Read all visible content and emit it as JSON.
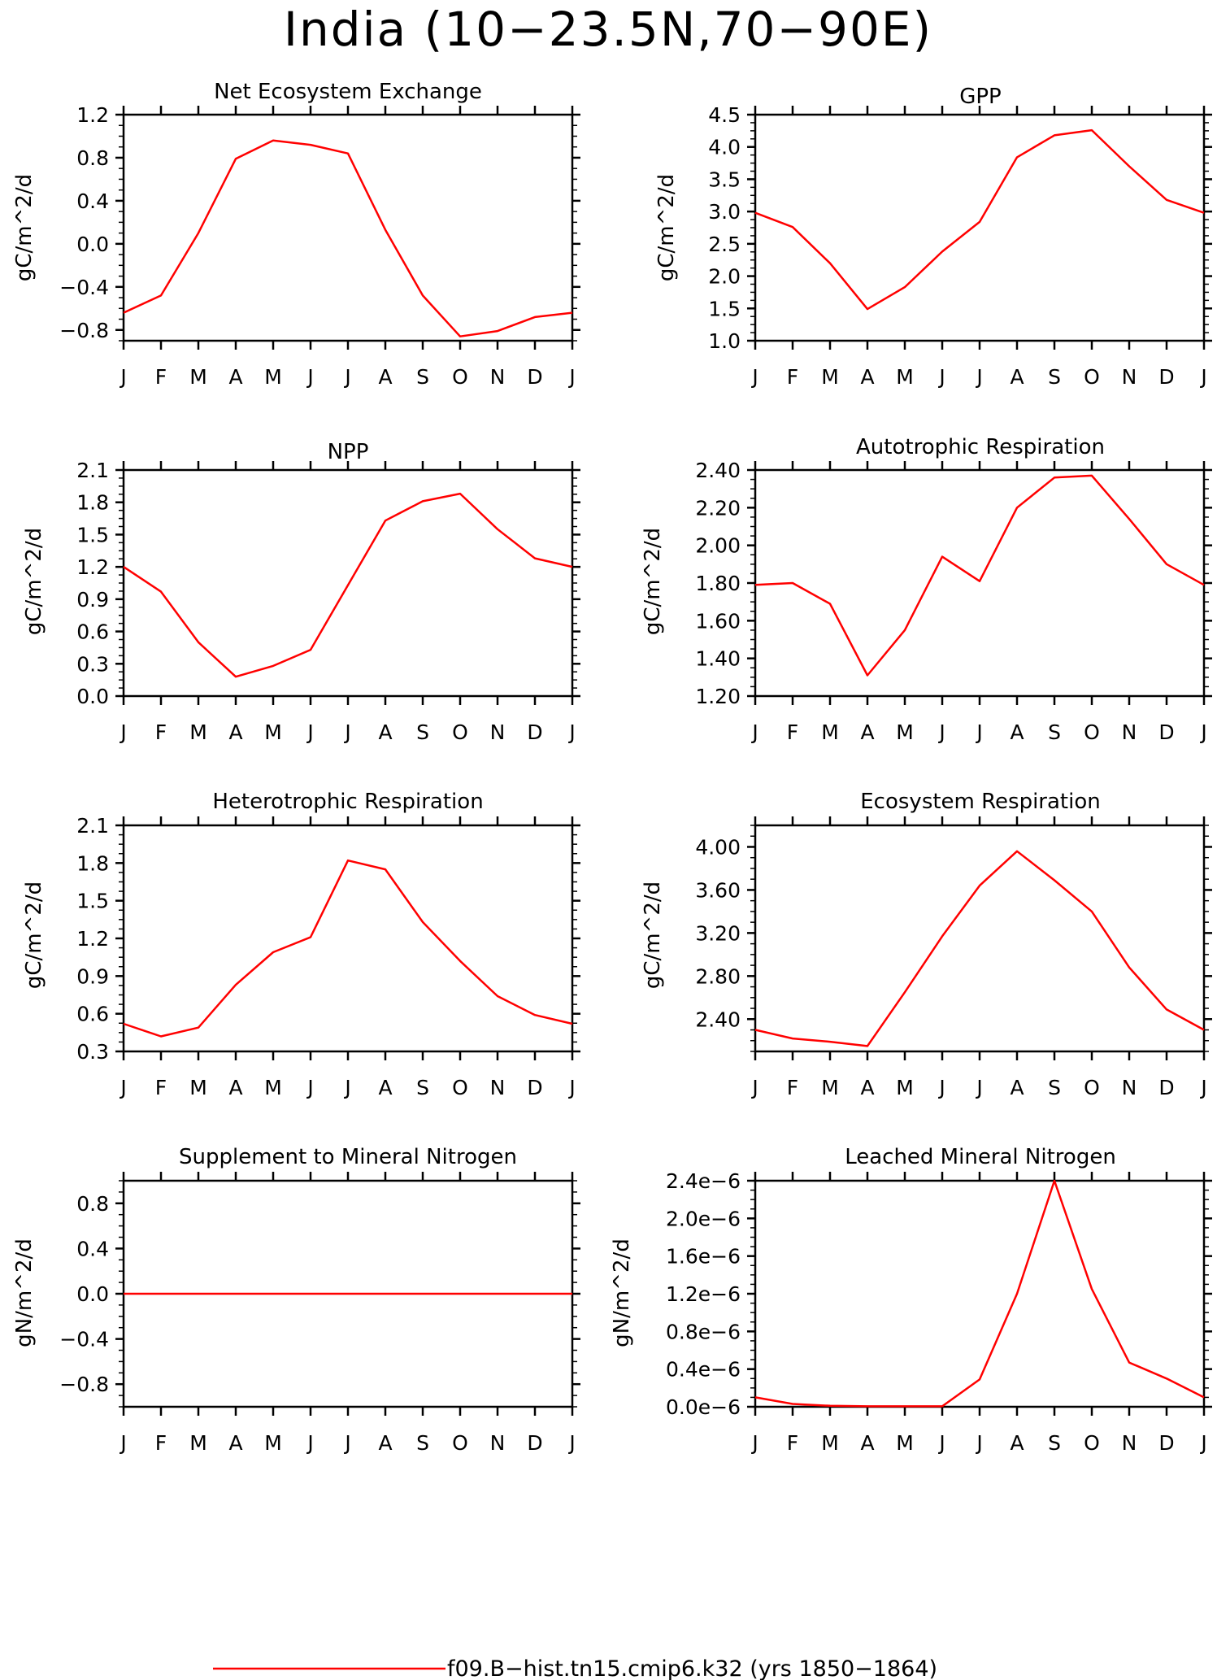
{
  "title": "India (10−23.5N,70−90E)",
  "month_labels": [
    "J",
    "F",
    "M",
    "A",
    "M",
    "J",
    "J",
    "A",
    "S",
    "O",
    "N",
    "D",
    "J"
  ],
  "line_color": "#ff0000",
  "legend": {
    "label": "f09.B−hist.tn15.cmip6.k32 (yrs 1850−1864)"
  },
  "chart_data": [
    {
      "type": "line",
      "title": "Net Ecosystem Exchange",
      "ylabel": "gC/m^2/d",
      "categories": [
        "J",
        "F",
        "M",
        "A",
        "M",
        "J",
        "J",
        "A",
        "S",
        "O",
        "N",
        "D",
        "J"
      ],
      "values": [
        -0.64,
        -0.48,
        0.1,
        0.79,
        0.96,
        0.92,
        0.84,
        0.13,
        -0.48,
        -0.86,
        -0.81,
        -0.68,
        -0.64
      ],
      "ylim": [
        -0.9,
        1.2
      ],
      "yticks": [
        -0.8,
        -0.4,
        0.0,
        0.4,
        0.8,
        1.2
      ],
      "ytick_labels": [
        "−0.8",
        "−0.4",
        "0.0",
        "0.4",
        "0.8",
        "1.2"
      ]
    },
    {
      "type": "line",
      "title": "GPP",
      "ylabel": "gC/m^2/d",
      "categories": [
        "J",
        "F",
        "M",
        "A",
        "M",
        "J",
        "J",
        "A",
        "S",
        "O",
        "N",
        "D",
        "J"
      ],
      "values": [
        2.98,
        2.76,
        2.2,
        1.49,
        1.83,
        2.38,
        2.84,
        3.84,
        4.18,
        4.26,
        3.7,
        3.18,
        2.98
      ],
      "ylim": [
        1.0,
        4.5
      ],
      "yticks": [
        1.0,
        1.5,
        2.0,
        2.5,
        3.0,
        3.5,
        4.0,
        4.5
      ],
      "ytick_labels": [
        "1.0",
        "1.5",
        "2.0",
        "2.5",
        "3.0",
        "3.5",
        "4.0",
        "4.5"
      ]
    },
    {
      "type": "line",
      "title": "NPP",
      "ylabel": "gC/m^2/d",
      "categories": [
        "J",
        "F",
        "M",
        "A",
        "M",
        "J",
        "J",
        "A",
        "S",
        "O",
        "N",
        "D",
        "J"
      ],
      "values": [
        1.2,
        0.97,
        0.5,
        0.18,
        0.28,
        0.43,
        1.03,
        1.63,
        1.81,
        1.88,
        1.55,
        1.28,
        1.2
      ],
      "ylim": [
        0.0,
        2.1
      ],
      "yticks": [
        0.0,
        0.3,
        0.6,
        0.9,
        1.2,
        1.5,
        1.8,
        2.1
      ],
      "ytick_labels": [
        "0.0",
        "0.3",
        "0.6",
        "0.9",
        "1.2",
        "1.5",
        "1.8",
        "2.1"
      ]
    },
    {
      "type": "line",
      "title": "Autotrophic Respiration",
      "ylabel": "gC/m^2/d",
      "categories": [
        "J",
        "F",
        "M",
        "A",
        "M",
        "J",
        "J",
        "A",
        "S",
        "O",
        "N",
        "D",
        "J"
      ],
      "values": [
        1.79,
        1.8,
        1.69,
        1.31,
        1.55,
        1.94,
        1.81,
        2.2,
        2.36,
        2.37,
        2.14,
        1.9,
        1.79
      ],
      "ylim": [
        1.2,
        2.4
      ],
      "yticks": [
        1.2,
        1.4,
        1.6,
        1.8,
        2.0,
        2.2,
        2.4
      ],
      "ytick_labels": [
        "1.20",
        "1.40",
        "1.60",
        "1.80",
        "2.00",
        "2.20",
        "2.40"
      ]
    },
    {
      "type": "line",
      "title": "Heterotrophic Respiration",
      "ylabel": "gC/m^2/d",
      "categories": [
        "J",
        "F",
        "M",
        "A",
        "M",
        "J",
        "J",
        "A",
        "S",
        "O",
        "N",
        "D",
        "J"
      ],
      "values": [
        0.52,
        0.42,
        0.49,
        0.83,
        1.09,
        1.21,
        1.82,
        1.75,
        1.33,
        1.02,
        0.74,
        0.59,
        0.52
      ],
      "ylim": [
        0.3,
        2.1
      ],
      "yticks": [
        0.3,
        0.6,
        0.9,
        1.2,
        1.5,
        1.8,
        2.1
      ],
      "ytick_labels": [
        "0.3",
        "0.6",
        "0.9",
        "1.2",
        "1.5",
        "1.8",
        "2.1"
      ]
    },
    {
      "type": "line",
      "title": "Ecosystem Respiration",
      "ylabel": "gC/m^2/d",
      "categories": [
        "J",
        "F",
        "M",
        "A",
        "M",
        "J",
        "J",
        "A",
        "S",
        "O",
        "N",
        "D",
        "J"
      ],
      "values": [
        2.3,
        2.22,
        2.19,
        2.15,
        2.65,
        3.17,
        3.64,
        3.96,
        3.69,
        3.4,
        2.88,
        2.49,
        2.3
      ],
      "ylim": [
        2.1,
        4.2
      ],
      "yticks": [
        2.4,
        2.8,
        3.2,
        3.6,
        4.0
      ],
      "ytick_labels": [
        "2.40",
        "2.80",
        "3.20",
        "3.60",
        "4.00"
      ]
    },
    {
      "type": "line",
      "title": "Supplement to Mineral Nitrogen",
      "ylabel": "gN/m^2/d",
      "categories": [
        "J",
        "F",
        "M",
        "A",
        "M",
        "J",
        "J",
        "A",
        "S",
        "O",
        "N",
        "D",
        "J"
      ],
      "values": [
        0,
        0,
        0,
        0,
        0,
        0,
        0,
        0,
        0,
        0,
        0,
        0,
        0
      ],
      "ylim": [
        -1.0,
        1.0
      ],
      "yticks": [
        -0.8,
        -0.4,
        0.0,
        0.4,
        0.8
      ],
      "ytick_labels": [
        "−0.8",
        "−0.4",
        "0.0",
        "0.4",
        "0.8"
      ]
    },
    {
      "type": "line",
      "title": "Leached Mineral Nitrogen",
      "ylabel": "gN/m^2/d",
      "categories": [
        "J",
        "F",
        "M",
        "A",
        "M",
        "J",
        "J",
        "A",
        "S",
        "O",
        "N",
        "D",
        "J"
      ],
      "values": [
        1e-07,
        3e-08,
        1e-08,
        5e-09,
        5e-09,
        5e-09,
        2.9e-07,
        1.2e-06,
        2.4e-06,
        1.25e-06,
        4.7e-07,
        3e-07,
        1e-07
      ],
      "ylim": [
        0.0,
        2.4e-06
      ],
      "yticks": [
        0.0,
        4e-07,
        8e-07,
        1.2e-06,
        1.6e-06,
        2e-06,
        2.4e-06
      ],
      "ytick_labels": [
        "0.0e−6",
        "0.4e−6",
        "0.8e−6",
        "1.2e−6",
        "1.6e−6",
        "2.0e−6",
        "2.4e−6"
      ]
    }
  ]
}
